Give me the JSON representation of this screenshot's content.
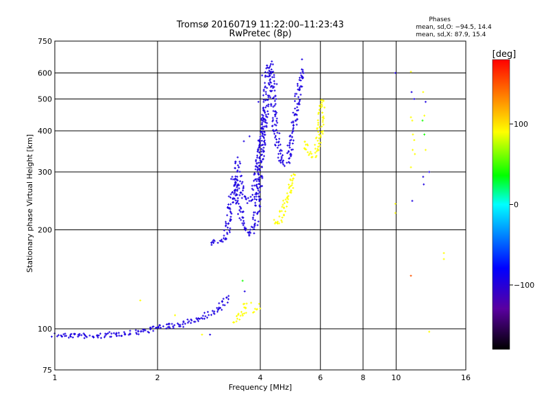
{
  "chart_data": {
    "type": "scatter",
    "title": "Tromsø 20160719 11:22:00–11:23:43",
    "subtitle": "RwPretec (8p)",
    "xlabel": "Frequency [MHz]",
    "ylabel": "Stationary phase Virtual Height [km]",
    "x_scale": "log",
    "y_scale": "log",
    "xlim": [
      1,
      16
    ],
    "ylim": [
      75,
      750
    ],
    "grid": true,
    "x_ticks": [
      {
        "value": 1,
        "label": "1"
      },
      {
        "value": 2,
        "label": "2"
      },
      {
        "value": 4,
        "label": "4"
      },
      {
        "value": 6,
        "label": "6"
      },
      {
        "value": 8,
        "label": "8"
      },
      {
        "value": 10,
        "label": "10"
      },
      {
        "value": 16,
        "label": "16"
      }
    ],
    "y_ticks": [
      {
        "value": 75,
        "label": "75"
      },
      {
        "value": 100,
        "label": "100"
      },
      {
        "value": 200,
        "label": "200"
      },
      {
        "value": 300,
        "label": "300"
      },
      {
        "value": 400,
        "label": "400"
      },
      {
        "value": 500,
        "label": "500"
      },
      {
        "value": 600,
        "label": "600"
      },
      {
        "value": 750,
        "label": "750"
      }
    ],
    "stats": {
      "heading": "Phases",
      "line_o": "mean, sd,O: −94.5, 14.4",
      "line_x": "mean, sd,X:  87.9, 15.4"
    },
    "colorbar": {
      "label": "[deg]",
      "range": [
        -180,
        180
      ],
      "ticks": [
        {
          "value": 100,
          "label": "100"
        },
        {
          "value": 0,
          "label": "0"
        },
        {
          "value": -100,
          "label": "−100"
        }
      ]
    },
    "series": [
      {
        "phase": -95,
        "trace": "x_polyline",
        "points": [
          [
            1.0,
            96
          ],
          [
            1.08,
            95
          ],
          [
            1.15,
            96
          ],
          [
            1.25,
            94.5
          ],
          [
            1.35,
            95
          ],
          [
            1.45,
            96
          ],
          [
            1.55,
            96.5
          ],
          [
            1.65,
            97
          ],
          [
            1.75,
            98
          ],
          [
            1.85,
            99
          ],
          [
            1.95,
            100.5
          ],
          [
            2.05,
            101.5
          ],
          [
            2.2,
            102
          ],
          [
            2.35,
            103
          ],
          [
            2.5,
            105
          ],
          [
            2.65,
            108
          ],
          [
            2.8,
            111
          ],
          [
            2.95,
            113
          ],
          [
            3.05,
            116
          ],
          [
            3.15,
            121
          ],
          [
            3.22,
            126
          ]
        ]
      },
      {
        "phase": -95,
        "trace": "x_polyline",
        "points": [
          [
            2.85,
            185
          ],
          [
            2.95,
            183
          ],
          [
            3.05,
            184
          ],
          [
            3.12,
            188
          ],
          [
            3.18,
            195
          ],
          [
            3.22,
            205
          ],
          [
            3.26,
            225
          ],
          [
            3.3,
            250
          ],
          [
            3.33,
            272
          ],
          [
            3.36,
            290
          ],
          [
            3.4,
            270
          ],
          [
            3.45,
            245
          ],
          [
            3.5,
            222
          ],
          [
            3.55,
            208
          ],
          [
            3.6,
            200
          ],
          [
            3.65,
            196
          ],
          [
            3.7,
            194
          ],
          [
            3.78,
            196
          ],
          [
            3.85,
            205
          ],
          [
            3.9,
            225
          ],
          [
            3.94,
            250
          ],
          [
            3.98,
            285
          ],
          [
            4.02,
            325
          ],
          [
            4.06,
            370
          ],
          [
            4.1,
            415
          ],
          [
            4.14,
            470
          ],
          [
            4.18,
            530
          ],
          [
            4.22,
            590
          ],
          [
            4.26,
            640
          ],
          [
            4.3,
            600
          ],
          [
            4.34,
            540
          ],
          [
            4.38,
            470
          ],
          [
            4.42,
            420
          ],
          [
            4.48,
            380
          ],
          [
            4.55,
            345
          ],
          [
            4.62,
            322
          ],
          [
            4.7,
            315
          ],
          [
            4.78,
            322
          ],
          [
            4.86,
            345
          ],
          [
            4.94,
            375
          ],
          [
            5.02,
            420
          ],
          [
            5.1,
            470
          ],
          [
            5.18,
            520
          ],
          [
            5.24,
            570
          ],
          [
            5.3,
            620
          ]
        ]
      },
      {
        "phase": -95,
        "trace": "x_polyline",
        "points": [
          [
            3.42,
            330
          ],
          [
            3.45,
            300
          ],
          [
            3.48,
            280
          ],
          [
            3.52,
            265
          ],
          [
            3.58,
            255
          ],
          [
            3.64,
            248
          ],
          [
            3.72,
            244
          ],
          [
            3.8,
            250
          ],
          [
            3.86,
            270
          ],
          [
            3.92,
            300
          ],
          [
            3.98,
            340
          ],
          [
            4.04,
            380
          ],
          [
            4.1,
            420
          ],
          [
            4.18,
            460
          ]
        ]
      },
      {
        "phase": 90,
        "trace": "x_polyline",
        "points": [
          [
            4.4,
            212
          ],
          [
            4.48,
            210
          ],
          [
            4.56,
            215
          ],
          [
            4.64,
            225
          ],
          [
            4.72,
            238
          ],
          [
            4.8,
            252
          ],
          [
            4.88,
            265
          ],
          [
            4.96,
            285
          ],
          [
            5.02,
            300
          ]
        ]
      },
      {
        "phase": 90,
        "trace": "x_polyline",
        "points": [
          [
            5.4,
            372
          ],
          [
            5.5,
            350
          ],
          [
            5.6,
            338
          ],
          [
            5.7,
            335
          ],
          [
            5.8,
            345
          ],
          [
            5.9,
            365
          ],
          [
            5.97,
            395
          ],
          [
            6.02,
            435
          ],
          [
            6.06,
            480
          ],
          [
            6.08,
            505
          ]
        ]
      },
      {
        "phase": 90,
        "trace": "x_polyline",
        "points": [
          [
            3.35,
            105
          ],
          [
            3.45,
            108
          ],
          [
            3.55,
            112
          ],
          [
            3.62,
            116
          ],
          [
            3.68,
            120
          ]
        ]
      },
      {
        "phase": 90,
        "trace": "x_polyline",
        "points": [
          [
            3.85,
            113
          ],
          [
            3.92,
            115
          ],
          [
            4.0,
            118
          ]
        ]
      },
      {
        "phase": -95,
        "trace": "scatter",
        "points": [
          [
            2.85,
            96
          ],
          [
            2.88,
            180
          ],
          [
            3.6,
            130
          ],
          [
            3.95,
            490
          ],
          [
            3.72,
            385
          ],
          [
            3.58,
            372
          ],
          [
            4.05,
            590
          ],
          [
            4.47,
            555
          ],
          [
            5.22,
            580
          ],
          [
            5.3,
            660
          ],
          [
            9.95,
            600
          ],
          [
            11.1,
            525
          ],
          [
            11.3,
            500
          ],
          [
            12.2,
            490
          ],
          [
            11.15,
            245
          ],
          [
            12.0,
            290
          ],
          [
            12.5,
            300
          ],
          [
            12.05,
            275
          ]
        ]
      },
      {
        "phase": 90,
        "trace": "scatter",
        "points": [
          [
            1.78,
            122
          ],
          [
            2.25,
            110
          ],
          [
            2.7,
            96
          ],
          [
            3.76,
            120
          ],
          [
            11.05,
            605
          ],
          [
            11.05,
            440
          ],
          [
            11.15,
            430
          ],
          [
            11.18,
            350
          ],
          [
            11.2,
            390
          ],
          [
            11.3,
            375
          ],
          [
            11.35,
            340
          ],
          [
            11.05,
            310
          ],
          [
            9.95,
            240
          ],
          [
            9.95,
            225
          ],
          [
            12.0,
            525
          ],
          [
            12.1,
            445
          ],
          [
            12.2,
            350
          ],
          [
            12.5,
            98
          ],
          [
            13.8,
            170
          ],
          [
            13.8,
            163
          ]
        ]
      },
      {
        "phase": 40,
        "trace": "scatter",
        "points": [
          [
            3.55,
            140
          ],
          [
            11.95,
            430
          ],
          [
            12.1,
            390
          ]
        ]
      },
      {
        "phase": 150,
        "trace": "scatter",
        "points": [
          [
            11.05,
            145
          ]
        ]
      }
    ]
  }
}
